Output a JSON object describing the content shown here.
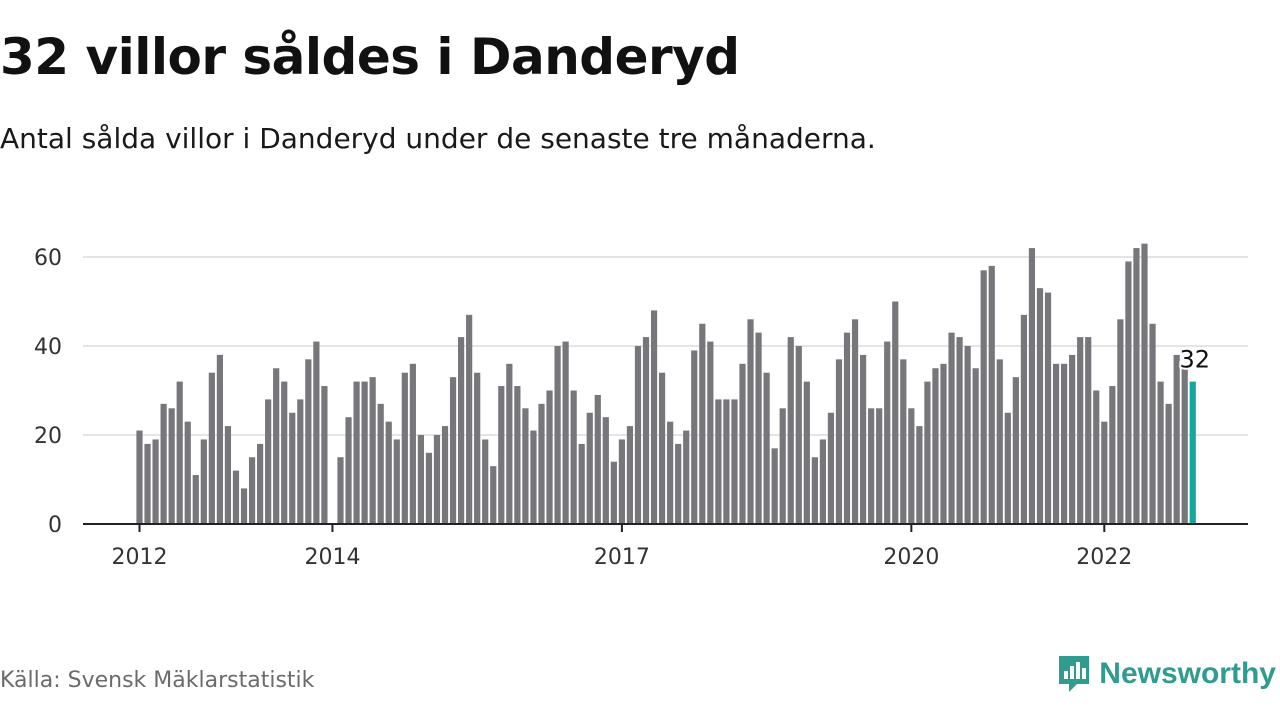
{
  "chart_data": {
    "type": "bar",
    "title": "32 villor såldes i Danderyd",
    "subtitle": "Antal sålda villor i Danderyd under de senaste tre månaderna.",
    "source": "Källa: Svensk Mäklarstatistik",
    "ylim": [
      0,
      70
    ],
    "yticks": [
      0,
      20,
      40,
      60
    ],
    "grid": true,
    "xtick_labels": [
      {
        "index": 0,
        "label": "2012"
      },
      {
        "index": 24,
        "label": "2014"
      },
      {
        "index": 60,
        "label": "2017"
      },
      {
        "index": 96,
        "label": "2020"
      },
      {
        "index": 120,
        "label": "2022"
      }
    ],
    "highlight_index": 131,
    "highlight_label": "32",
    "colors": {
      "bar": "#77767b",
      "highlight": "#13a89e",
      "grid": "#dcdcdc",
      "axis": "#222222"
    },
    "values": [
      21,
      18,
      19,
      27,
      26,
      32,
      23,
      11,
      19,
      34,
      38,
      22,
      12,
      8,
      15,
      18,
      28,
      35,
      32,
      25,
      28,
      37,
      41,
      31,
      0,
      15,
      24,
      32,
      32,
      33,
      27,
      23,
      19,
      34,
      36,
      20,
      16,
      20,
      22,
      33,
      42,
      47,
      34,
      19,
      13,
      31,
      36,
      31,
      26,
      21,
      27,
      30,
      40,
      41,
      30,
      18,
      25,
      29,
      24,
      14,
      19,
      22,
      40,
      42,
      48,
      34,
      23,
      18,
      21,
      39,
      45,
      41,
      28,
      28,
      28,
      36,
      46,
      43,
      34,
      17,
      26,
      42,
      40,
      32,
      15,
      19,
      25,
      37,
      43,
      46,
      38,
      26,
      26,
      41,
      50,
      37,
      26,
      22,
      32,
      35,
      36,
      43,
      42,
      40,
      35,
      57,
      58,
      37,
      25,
      33,
      47,
      62,
      53,
      52,
      36,
      36,
      38,
      42,
      42,
      30,
      23,
      31,
      46,
      59,
      62,
      63,
      45,
      32,
      27,
      38,
      35,
      32
    ]
  },
  "brand": {
    "name": "Newsworthy",
    "icon": "newsworthy-logo-icon"
  }
}
